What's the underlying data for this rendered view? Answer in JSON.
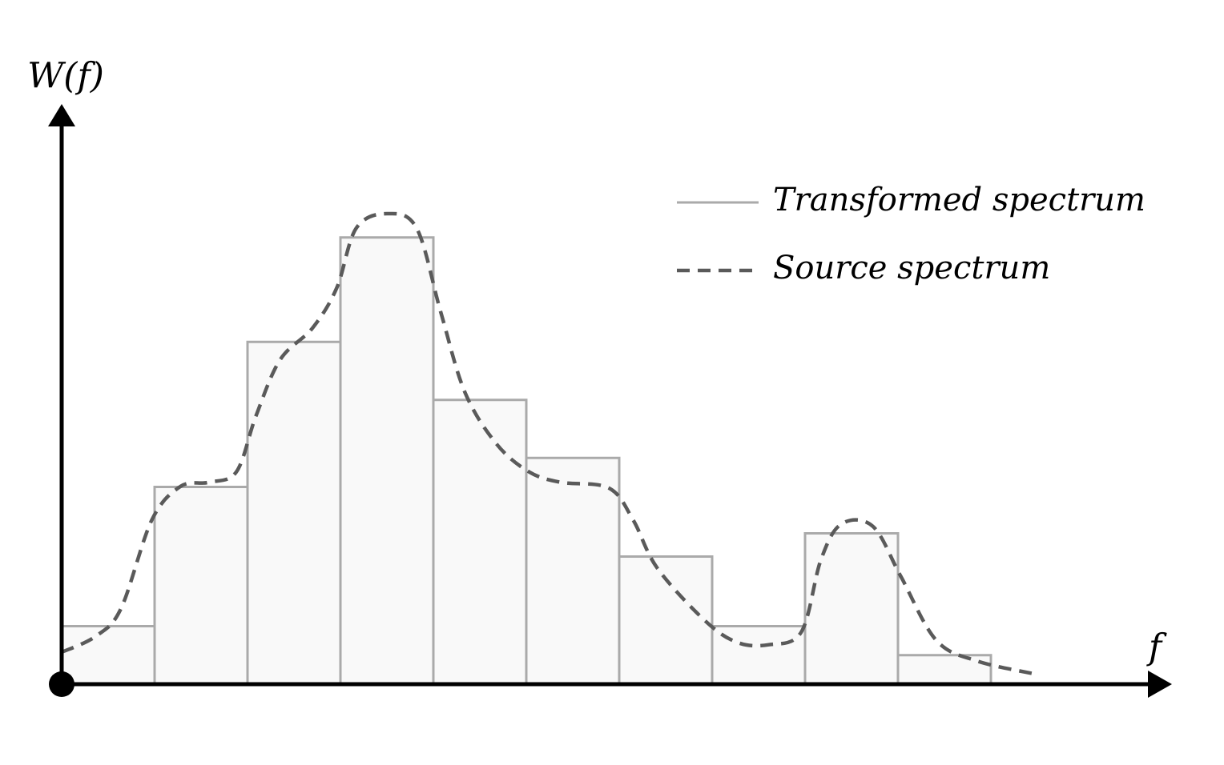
{
  "chart_data": {
    "type": "histogram",
    "xlabel": "f",
    "ylabel": "W(f)",
    "xlim": [
      0,
      12
    ],
    "ylim": [
      0,
      10
    ],
    "bins": [
      0,
      1,
      2,
      3,
      4,
      5,
      6,
      7,
      8,
      9,
      10
    ],
    "series": [
      {
        "name": "Transformed spectrum",
        "type": "histogram",
        "color": "#f9f9f9",
        "edge_color": "#aaaaaa",
        "values": [
          1.0,
          3.4,
          5.9,
          7.7,
          4.9,
          3.9,
          2.2,
          1.0,
          2.6,
          0.5
        ]
      },
      {
        "name": "Source spectrum",
        "type": "line",
        "color": "#5a5a5a",
        "dashed": true,
        "x": [
          0,
          0.37,
          0.64,
          0.97,
          1.28,
          1.58,
          1.88,
          2.09,
          2.35,
          2.7,
          2.96,
          3.17,
          3.5,
          3.82,
          4.08,
          4.34,
          4.68,
          5.03,
          5.37,
          5.89,
          6.15,
          6.41,
          6.92,
          7.27,
          7.61,
          7.96,
          8.17,
          8.39,
          8.73,
          9.03,
          9.41,
          9.85,
          10.46
        ],
        "values": [
          0.55,
          0.83,
          1.31,
          2.83,
          3.41,
          3.48,
          3.66,
          4.62,
          5.59,
          6.14,
          6.83,
          7.86,
          8.11,
          7.86,
          6.41,
          5.03,
          4.14,
          3.66,
          3.48,
          3.38,
          2.83,
          2.0,
          1.1,
          0.72,
          0.68,
          0.9,
          2.14,
          2.76,
          2.72,
          1.86,
          0.76,
          0.4,
          0.18
        ]
      }
    ]
  }
}
